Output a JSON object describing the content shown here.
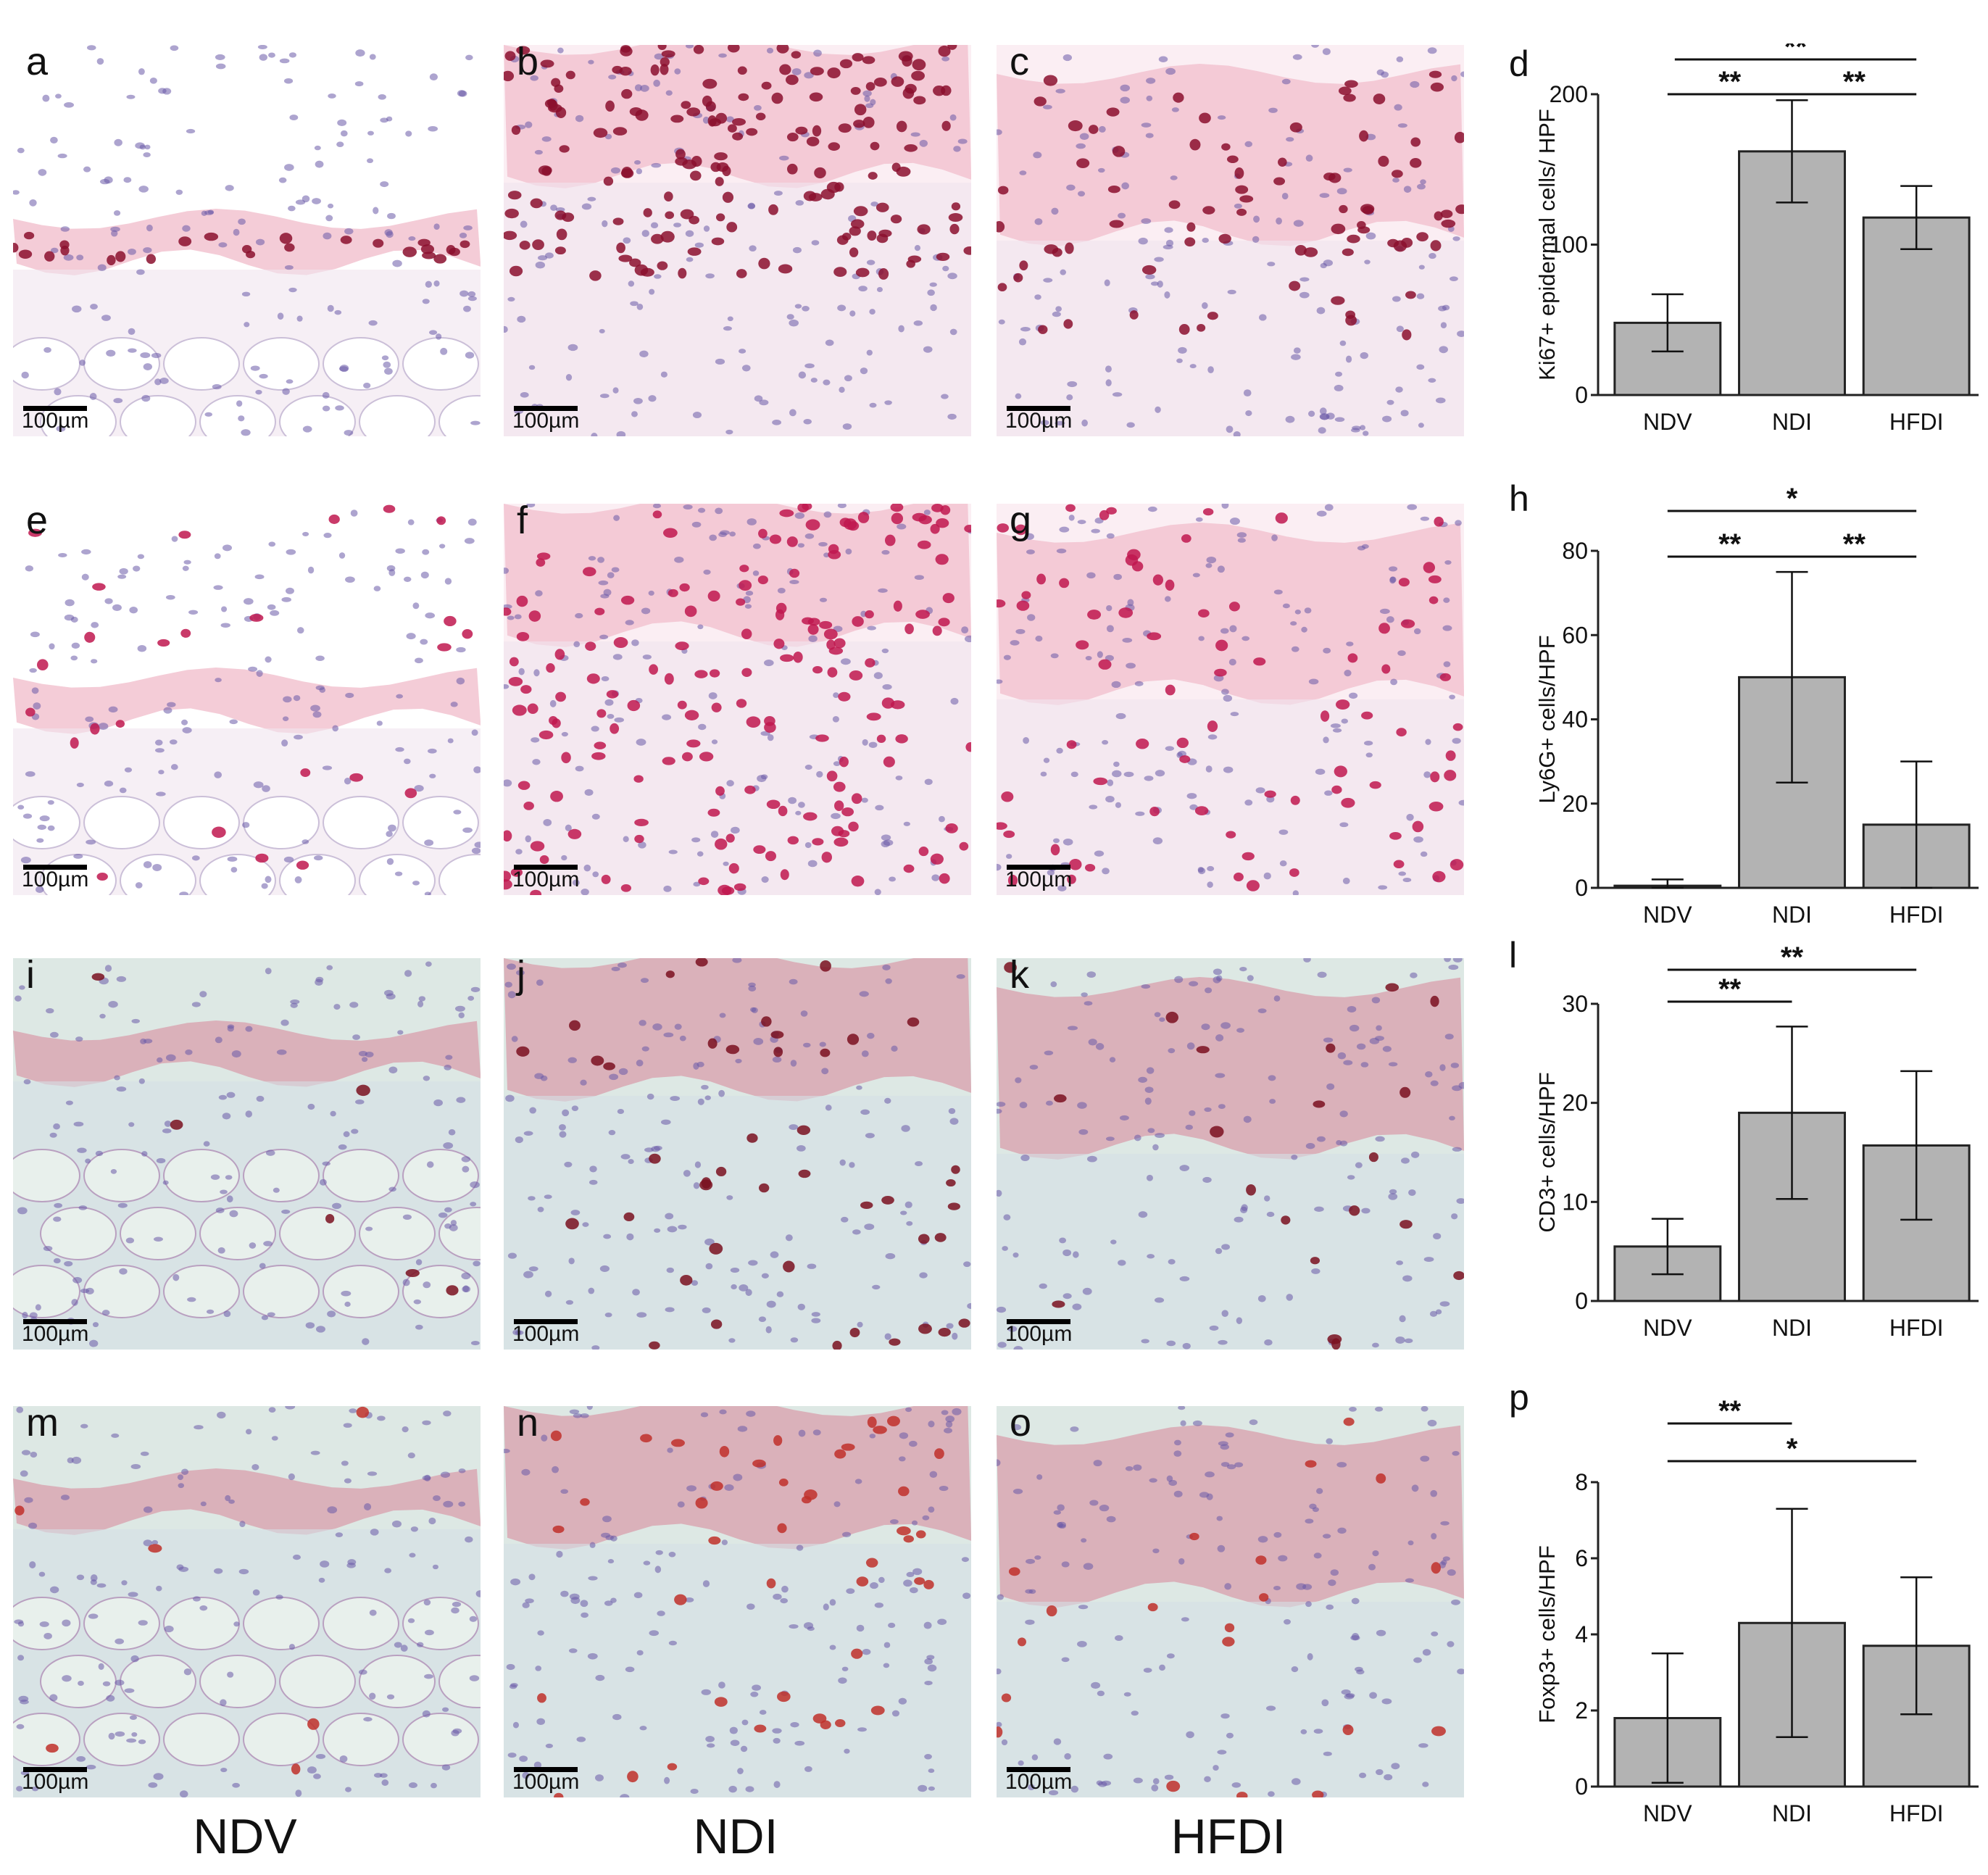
{
  "panels": {
    "micro": [
      {
        "letter": "a",
        "scale": "100µm",
        "stain": "ki67",
        "tissue": "thin"
      },
      {
        "letter": "b",
        "scale": "100µm",
        "stain": "ki67",
        "tissue": "thick"
      },
      {
        "letter": "c",
        "scale": "100µm",
        "stain": "ki67",
        "tissue": "medium"
      },
      {
        "letter": "e",
        "scale": "100µm",
        "stain": "ly6g",
        "tissue": "thin"
      },
      {
        "letter": "f",
        "scale": "100µm",
        "stain": "ly6g",
        "tissue": "thick"
      },
      {
        "letter": "g",
        "scale": "100µm",
        "stain": "ly6g",
        "tissue": "medium"
      },
      {
        "letter": "i",
        "scale": "100µm",
        "stain": "cd3",
        "tissue": "thin"
      },
      {
        "letter": "j",
        "scale": "100µm",
        "stain": "cd3",
        "tissue": "thick"
      },
      {
        "letter": "k",
        "scale": "100µm",
        "stain": "cd3",
        "tissue": "medium"
      },
      {
        "letter": "m",
        "scale": "100µm",
        "stain": "foxp3",
        "tissue": "thin"
      },
      {
        "letter": "n",
        "scale": "100µm",
        "stain": "foxp3",
        "tissue": "thick"
      },
      {
        "letter": "o",
        "scale": "100µm",
        "stain": "foxp3",
        "tissue": "medium"
      }
    ],
    "columns": [
      "NDV",
      "NDI",
      "HFDI"
    ]
  },
  "colors": {
    "bar_fill": "#b3b3b3",
    "bar_stroke": "#222222",
    "ki67_stain": "#8b0f2e",
    "ly6g_stain": "#c0184f",
    "cd3_stain": "#7a1020",
    "foxp3_stain": "#c0302a",
    "hematoxylin": "#6a5aa8",
    "background_pink": "#f3dbe4",
    "background_green": "#dde8e4"
  },
  "chart_data": [
    {
      "letter": "d",
      "type": "bar",
      "categories": [
        "NDV",
        "NDI",
        "HFDI"
      ],
      "values": [
        48,
        162,
        118
      ],
      "errors": [
        19,
        34,
        21
      ],
      "ylabel": "Ki67+ epidermal cells/ HPF",
      "ylim": [
        0,
        200
      ],
      "yticks": [
        "0",
        "100",
        "200"
      ],
      "sig": [
        {
          "from": 1,
          "to": 2,
          "text": "**",
          "level": 2
        },
        {
          "from": 0,
          "to": 1,
          "text": "**",
          "level": 1
        },
        {
          "from": 0,
          "to": 2,
          "text": "**",
          "level": 0
        }
      ]
    },
    {
      "letter": "h",
      "type": "bar",
      "categories": [
        "NDV",
        "NDI",
        "HFDI"
      ],
      "values": [
        0.5,
        50,
        15
      ],
      "errors": [
        1.5,
        25,
        15
      ],
      "ylabel": "Ly6G+ cells/HPF",
      "ylim": [
        0,
        80
      ],
      "yticks": [
        "0",
        "20",
        "40",
        "60",
        "80"
      ],
      "sig": [
        {
          "from": 1,
          "to": 2,
          "text": "**",
          "level": 1
        },
        {
          "from": 0,
          "to": 1,
          "text": "**",
          "level": 1
        },
        {
          "from": 0,
          "to": 2,
          "text": "*",
          "level": 0
        }
      ]
    },
    {
      "letter": "l",
      "type": "bar",
      "categories": [
        "NDV",
        "NDI",
        "HFDI"
      ],
      "values": [
        5.5,
        19,
        15.7
      ],
      "errors": [
        2.8,
        8.7,
        7.5
      ],
      "ylabel": "CD3+ cells/HPF",
      "ylim": [
        0,
        30
      ],
      "yticks": [
        "0",
        "10",
        "20",
        "30"
      ],
      "sig": [
        {
          "from": 0,
          "to": 1,
          "text": "**",
          "level": 1
        },
        {
          "from": 0,
          "to": 2,
          "text": "**",
          "level": 0
        }
      ]
    },
    {
      "letter": "p",
      "type": "bar",
      "categories": [
        "NDV",
        "NDI",
        "HFDI"
      ],
      "values": [
        1.8,
        4.3,
        3.7
      ],
      "errors": [
        1.7,
        3.0,
        1.8
      ],
      "ylabel": "Foxp3+ cells/HPF",
      "ylim": [
        0,
        8
      ],
      "yticks": [
        "0",
        "2",
        "4",
        "6",
        "8"
      ],
      "sig": [
        {
          "from": 0,
          "to": 1,
          "text": "**",
          "level": 0
        },
        {
          "from": 0,
          "to": 2,
          "text": "*",
          "level": 1
        }
      ]
    }
  ]
}
